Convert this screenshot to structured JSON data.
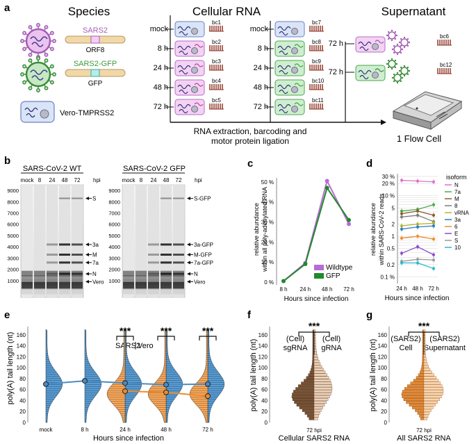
{
  "panels": {
    "a": {
      "letter": "a",
      "species_title": "Species",
      "cellular_title": "Cellular RNA",
      "supernatant_title": "Supernatant",
      "virus1": {
        "name": "SARS2",
        "orf": "ORF8"
      },
      "virus2": {
        "name": "SARS2-GFP",
        "orf": "GFP"
      },
      "cell_name": "Vero-TMPRSS2",
      "col1_times": [
        "mock",
        "8 h",
        "24 h",
        "48 h",
        "72 h"
      ],
      "col1_barcodes": [
        "bc1",
        "bc2",
        "bc3",
        "bc4",
        "bc5"
      ],
      "col2_times": [
        "mock",
        "8 h",
        "24 h",
        "48 h",
        "72 h"
      ],
      "col2_barcodes": [
        "bc7",
        "bc8",
        "bc9",
        "bc10",
        "bc11"
      ],
      "super_times": [
        "72 h",
        "72 h"
      ],
      "super_barcodes": [
        "bc6",
        "bc12"
      ],
      "process_line1": "RNA extraction, barcoding and",
      "process_line2": "motor protein ligation",
      "flowcell": "1 Flow Cell"
    },
    "b": {
      "letter": "b",
      "gel1_title": "SARS-CoV-2 WT",
      "gel2_title": "SARS-CoV-2 GFP",
      "hpi": "hpi",
      "lanes": [
        "mock",
        "8",
        "24",
        "48",
        "72"
      ],
      "yticks": [
        "9000",
        "8000",
        "7000",
        "6000",
        "5000",
        "4000",
        "3000",
        "2000",
        "1000"
      ],
      "labels1": [
        "S",
        "3a",
        "M",
        "7a",
        "N",
        "Vero"
      ],
      "labels2": [
        "S-GFP",
        "3a-GFP",
        "M-GFP",
        "7a-GFP",
        "N",
        "Vero"
      ]
    },
    "c_letter": "c",
    "d_letter": "d",
    "e": {
      "letter": "e",
      "ylabel": "poly(A) tail length (nt)",
      "xlabel": "Hours since infection",
      "categories": [
        "mock",
        "8 h",
        "24 h",
        "48 h",
        "72 h"
      ],
      "legend_sars2": "SARS2",
      "legend_vero": "Vero",
      "sig": "***",
      "yticks": [
        "0",
        "20",
        "40",
        "60",
        "80",
        "100",
        "120",
        "140",
        "160"
      ]
    },
    "f": {
      "letter": "f",
      "ylabel": "poly(A) tail length (nt)",
      "left_label_1": "(Cell)",
      "left_label_2": "sgRNA",
      "right_label_1": "(Cell)",
      "right_label_2": "gRNA",
      "sig": "***",
      "xtick": "72 hpi",
      "xlabel": "Cellular SARS2 RNA",
      "yticks": [
        "0",
        "20",
        "40",
        "60",
        "80",
        "100",
        "120",
        "140",
        "160"
      ]
    },
    "g": {
      "letter": "g",
      "ylabel": "poly(A) tail length (nt)",
      "left_label_1": "(SARS2)",
      "left_label_2": "Cell",
      "right_label_1": "(SARS2)",
      "right_label_2": "Supernatant",
      "sig": "***",
      "xtick": "72 hpi",
      "xlabel": "All SARS2 RNA",
      "yticks": [
        "0",
        "20",
        "40",
        "60",
        "80",
        "100",
        "120",
        "140",
        "160"
      ]
    }
  },
  "chart_data": [
    {
      "id": "c",
      "type": "line",
      "title": "",
      "xlabel": "Hours since infection",
      "ylabel": "relative abundance within all poly-adenylated RNA",
      "categories": [
        "8 h",
        "24 h",
        "48 h",
        "72 h"
      ],
      "yticks": [
        "0 %",
        "10 %",
        "20 %",
        "30 %",
        "40 %",
        "50 %"
      ],
      "ylim": [
        0,
        52
      ],
      "series": [
        {
          "name": "Wildtype",
          "color": "#b86bd6",
          "values": [
            0.5,
            9.5,
            50.5,
            29
          ]
        },
        {
          "name": "GFP",
          "color": "#1f8a2a",
          "values": [
            0.5,
            9,
            47,
            31
          ]
        }
      ],
      "legend": "bottom-right"
    },
    {
      "id": "d",
      "type": "line",
      "xlabel": "Hours since infection",
      "ylabel": "relative abundance within SARS-CoV-2 reads",
      "categories": [
        "24 h",
        "48 h",
        "72 h"
      ],
      "yscale": "log",
      "yticks": [
        "30 %",
        "20 %",
        "10 %",
        "5",
        "2",
        "1",
        "0.5",
        "0.2",
        "0.1 %"
      ],
      "ytick_values": [
        30,
        20,
        10,
        5,
        2,
        1,
        0.5,
        0.2,
        0.1
      ],
      "ylim": [
        0.08,
        35
      ],
      "legend_title": "isoform",
      "series": [
        {
          "name": "N",
          "color": "#e06fc8",
          "values": [
            24,
            23,
            22
          ]
        },
        {
          "name": "7a",
          "color": "#4aa84a",
          "values": [
            4.2,
            4.6,
            6.0
          ]
        },
        {
          "name": "M",
          "color": "#8b5a2b",
          "values": [
            3.6,
            4.2,
            3.3
          ]
        },
        {
          "name": "8",
          "color": "#7a7a7a",
          "values": [
            3.0,
            3.3,
            2.3
          ]
        },
        {
          "name": "vRNA",
          "color": "#b5b52a",
          "values": [
            1.8,
            2.0,
            2.1
          ]
        },
        {
          "name": "3a",
          "color": "#2a7ac0",
          "values": [
            1.5,
            1.7,
            1.8
          ]
        },
        {
          "name": "6",
          "color": "#f08c28",
          "values": [
            0.9,
            1.0,
            0.85
          ]
        },
        {
          "name": "E",
          "color": "#8a4ac8",
          "values": [
            0.38,
            0.55,
            0.35
          ]
        },
        {
          "name": "S",
          "color": "#9a9a9a",
          "values": [
            0.24,
            0.27,
            0.26
          ]
        },
        {
          "name": "10",
          "color": "#2ab8c8",
          "values": [
            0.22,
            0.22,
            0.16
          ]
        }
      ]
    },
    {
      "id": "e",
      "type": "violin",
      "categories": [
        "mock",
        "8 h",
        "24 h",
        "48 h",
        "72 h"
      ],
      "ylim": [
        0,
        175
      ],
      "series": [
        {
          "name": "Vero",
          "color": "#4a8bc4",
          "medians": [
            70,
            76,
            72,
            69,
            70
          ]
        },
        {
          "name": "SARS2",
          "color": "#ee8a2a",
          "medians": [
            null,
            null,
            57,
            55,
            48
          ]
        }
      ]
    }
  ]
}
